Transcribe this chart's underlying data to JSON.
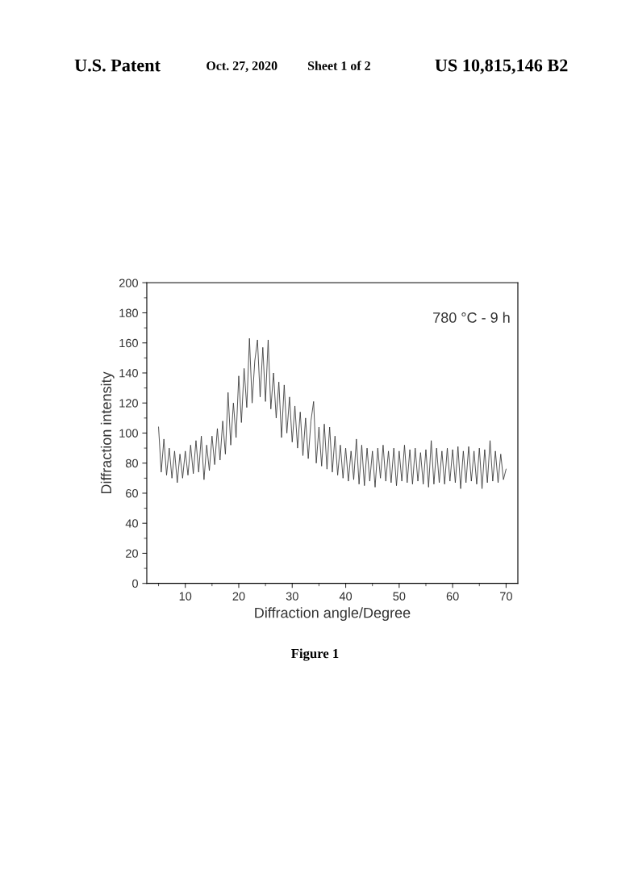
{
  "chart_data": {
    "type": "line",
    "xlabel": "Diffraction angle/Degree",
    "ylabel": "Diffraction intensity",
    "annotations": [
      "U.S. Patent",
      "Oct. 27, 2020",
      "Sheet 1 of 2",
      "US 10,815,146 B2",
      "780 °C - 9 h",
      "Figure 1"
    ],
    "xlim": [
      2.8,
      72.2
    ],
    "xticks": [
      10,
      20,
      30,
      40,
      50,
      60,
      70
    ],
    "ylim": [
      0,
      200
    ],
    "yticks": [
      0,
      20,
      40,
      60,
      80,
      100,
      120,
      140,
      160,
      180,
      200
    ],
    "grid": false,
    "legend": false,
    "marker": "none",
    "line_style": "solid",
    "series": [
      {
        "color": "#333333",
        "x": [
          5.0,
          5.5,
          6.0,
          6.5,
          7.0,
          7.5,
          8.0,
          8.5,
          9.0,
          9.5,
          10.0,
          10.5,
          11.0,
          11.5,
          12.0,
          12.5,
          13.0,
          13.5,
          14.0,
          14.5,
          15.0,
          15.5,
          16.0,
          16.5,
          17.0,
          17.5,
          18.0,
          18.5,
          19.0,
          19.5,
          20.0,
          20.5,
          21.0,
          21.5,
          22.0,
          22.5,
          23.0,
          23.5,
          24.0,
          24.5,
          25.0,
          25.5,
          26.0,
          26.5,
          27.0,
          27.5,
          28.0,
          28.5,
          29.0,
          29.5,
          30.0,
          30.5,
          31.0,
          31.5,
          32.0,
          32.5,
          33.0,
          33.5,
          34.0,
          34.5,
          35.0,
          35.5,
          36.0,
          36.5,
          37.0,
          37.5,
          38.0,
          38.5,
          39.0,
          39.5,
          40.0,
          40.5,
          41.0,
          41.5,
          42.0,
          42.5,
          43.0,
          43.5,
          44.0,
          44.5,
          45.0,
          45.5,
          46.0,
          46.5,
          47.0,
          47.5,
          48.0,
          48.5,
          49.0,
          49.5,
          50.0,
          50.5,
          51.0,
          51.5,
          52.0,
          52.5,
          53.0,
          53.5,
          54.0,
          54.5,
          55.0,
          55.5,
          56.0,
          56.5,
          57.0,
          57.5,
          58.0,
          58.5,
          59.0,
          59.5,
          60.0,
          60.5,
          61.0,
          61.5,
          62.0,
          62.5,
          63.0,
          63.5,
          64.0,
          64.5,
          65.0,
          65.5,
          66.0,
          66.5,
          67.0,
          67.5,
          68.0,
          68.5,
          69.0,
          69.5,
          70.0
        ],
        "values": [
          104,
          74,
          96,
          72,
          90,
          70,
          88,
          67,
          86,
          70,
          88,
          72,
          92,
          73,
          95,
          74,
          98,
          69,
          92,
          75,
          98,
          79,
          103,
          82,
          108,
          86,
          127,
          92,
          120,
          97,
          138,
          107,
          143,
          117,
          163,
          120,
          148,
          162,
          124,
          157,
          121,
          162,
          116,
          140,
          110,
          134,
          97,
          132,
          100,
          124,
          94,
          118,
          90,
          114,
          85,
          110,
          83,
          108,
          121,
          80,
          104,
          78,
          106,
          76,
          104,
          74,
          98,
          72,
          92,
          70,
          90,
          68,
          88,
          69,
          96,
          66,
          92,
          65,
          90,
          68,
          88,
          64,
          90,
          70,
          92,
          68,
          88,
          67,
          90,
          65,
          88,
          68,
          92,
          67,
          89,
          66,
          90,
          68,
          87,
          66,
          89,
          64,
          95,
          66,
          90,
          67,
          88,
          66,
          90,
          68,
          89,
          67,
          91,
          63,
          88,
          67,
          91,
          68,
          88,
          66,
          90,
          63,
          89,
          67,
          95,
          68,
          88,
          67,
          86,
          69,
          76
        ]
      }
    ]
  }
}
